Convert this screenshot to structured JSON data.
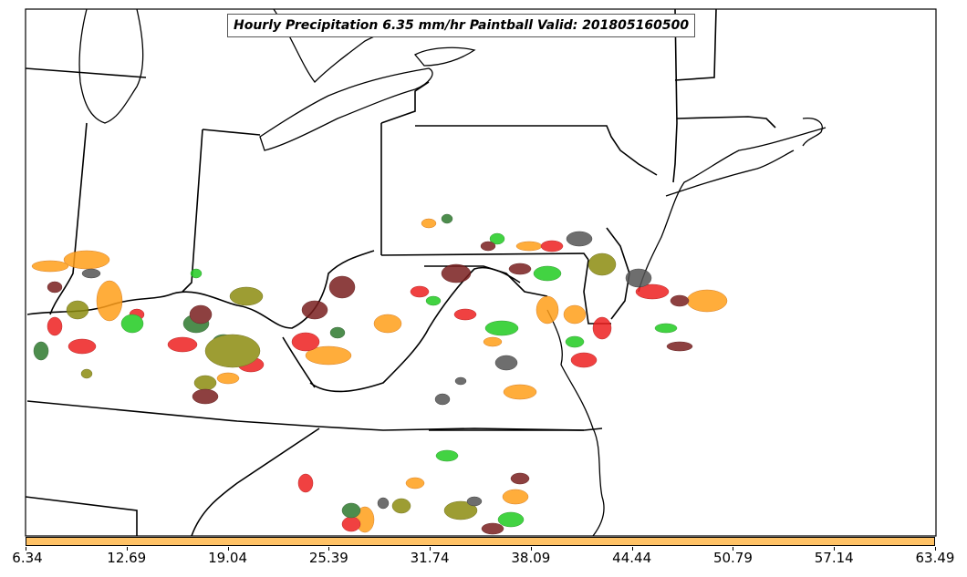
{
  "title": "Hourly Precipitation 6.35 mm/hr Paintball Valid: 201805160500",
  "palette": {
    "orange": "#ff9f1a",
    "red": "#ee2020",
    "green": "#22cc22",
    "dark_green": "#2f7a2f",
    "olive": "#8c8c10",
    "maroon": "#7a1f1f",
    "dark_gray": "#555555"
  },
  "colorbar": {
    "color": "#ffc266",
    "tick_labels": [
      "6.34",
      "12.69",
      "19.04",
      "25.39",
      "31.74",
      "38.09",
      "44.44",
      "50.79",
      "57.14",
      "63.49"
    ]
  }
}
